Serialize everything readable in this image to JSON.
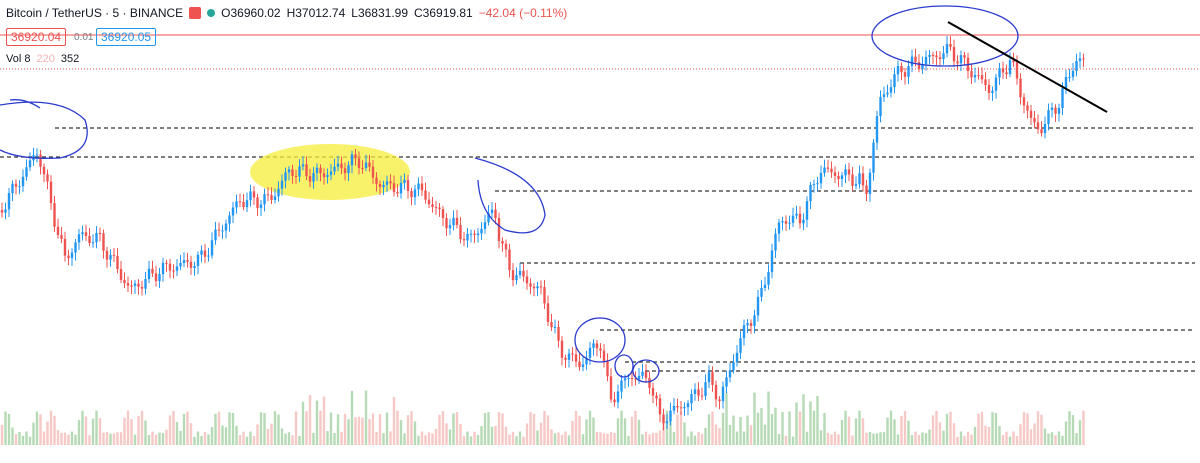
{
  "header": {
    "symbol": "Bitcoin / TetherUS · 5 · BINANCE",
    "open": "O36960.02",
    "high": "H37012.74",
    "low": "L36831.99",
    "close": "C36919.81",
    "change": "−42.04 (−0.11%)"
  },
  "price_badges": {
    "bid": "36920.04",
    "spread": "0.01",
    "ask": "36920.05"
  },
  "volume": {
    "label": "Vol 8",
    "ma": "220",
    "value": "352"
  }
}
